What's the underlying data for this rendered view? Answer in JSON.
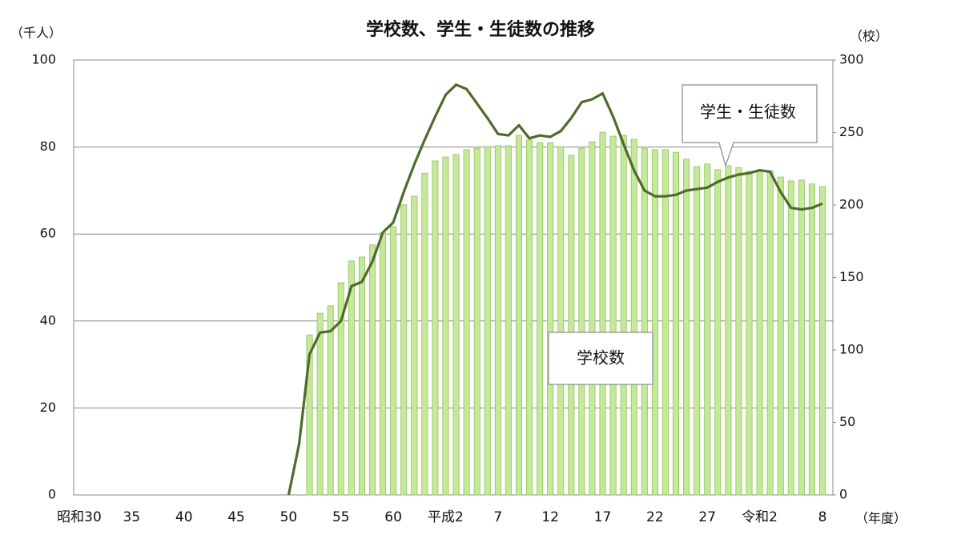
{
  "chart_data": {
    "type": "bar",
    "title": "学校数、学生・生徒数の推移",
    "y_label": "（千人）",
    "y2_label": "（校）",
    "x_label": "（年度）",
    "categories": [
      "昭和30",
      null,
      null,
      null,
      null,
      "35",
      null,
      null,
      null,
      null,
      "40",
      null,
      null,
      null,
      null,
      "45",
      null,
      null,
      null,
      null,
      "50",
      null,
      null,
      null,
      null,
      "55",
      null,
      null,
      null,
      null,
      "60",
      null,
      null,
      null,
      null,
      "平成2",
      null,
      null,
      null,
      null,
      "7",
      null,
      null,
      null,
      null,
      "12",
      null,
      null,
      null,
      null,
      "17",
      null,
      null,
      null,
      null,
      "22",
      null,
      null,
      null,
      null,
      "27",
      null,
      null,
      null,
      null,
      "令和2",
      null,
      null,
      null,
      null,
      null,
      "8"
    ],
    "series": [
      {
        "name": "学生・生徒数",
        "type": "bar",
        "color": "#c6e89a",
        "edge_color": "#8cc45a",
        "values": [
          null,
          null,
          null,
          null,
          null,
          null,
          null,
          null,
          null,
          null,
          null,
          null,
          null,
          null,
          null,
          null,
          null,
          null,
          null,
          null,
          null,
          null,
          36.8,
          41.8,
          43.5,
          48.8,
          53.8,
          54.7,
          57.5,
          60.3,
          61.7,
          66.7,
          68.7,
          74.0,
          76.8,
          77.7,
          78.3,
          79.4,
          79.7,
          80.1,
          80.3,
          80.3,
          82.7,
          81.6,
          81.0,
          81.0,
          80.1,
          78.1,
          79.7,
          81.2,
          83.4,
          82.5,
          82.7,
          81.8,
          79.7,
          79.4,
          79.4,
          78.8,
          77.2,
          75.5,
          76.1,
          74.8,
          75.7,
          75.3,
          74.4,
          74.4,
          74.6,
          73.1,
          72.2,
          72.4,
          71.5,
          70.9
        ]
      },
      {
        "name": "学校数",
        "type": "line",
        "axis": "y2",
        "color": "#4f6b2a",
        "values": [
          null,
          null,
          null,
          null,
          null,
          null,
          null,
          null,
          null,
          null,
          null,
          null,
          null,
          null,
          null,
          null,
          null,
          null,
          null,
          null,
          0,
          35,
          97,
          112,
          113,
          120,
          144,
          147,
          161,
          181,
          188,
          209,
          228,
          245,
          261,
          276,
          283,
          280,
          270,
          260,
          249,
          248,
          255,
          246,
          248,
          247,
          251,
          260,
          271,
          273,
          277,
          261,
          242,
          224,
          210,
          206,
          206,
          207,
          210,
          211,
          212,
          216,
          219,
          221,
          222,
          224,
          223,
          209,
          198,
          197,
          198,
          201
        ]
      }
    ],
    "ylim": [
      0,
      100
    ],
    "yticks": [
      0,
      20,
      40,
      60,
      80,
      100
    ],
    "y2lim": [
      0,
      300
    ],
    "y2ticks": [
      0,
      50,
      100,
      150,
      200,
      250,
      300
    ],
    "grid": true
  }
}
